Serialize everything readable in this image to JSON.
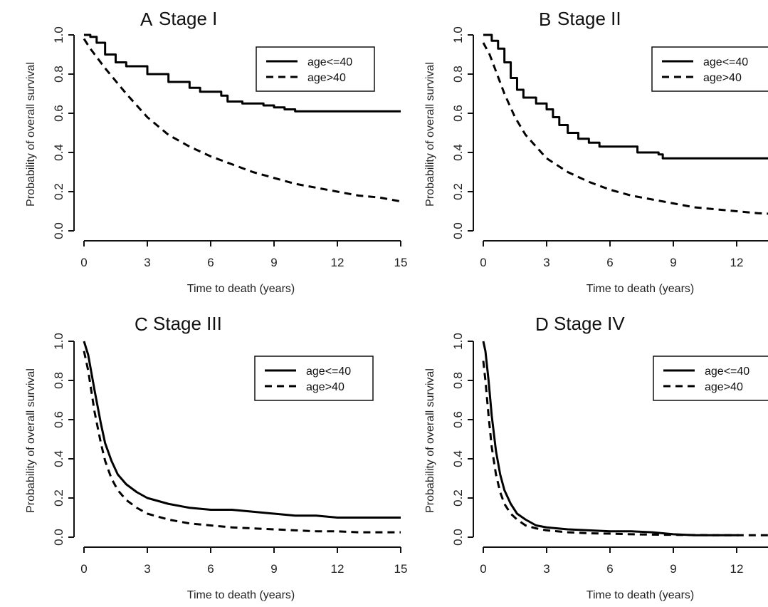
{
  "figure": {
    "legend_labels": [
      "age<=40",
      "age>40"
    ],
    "xlabel": "Time to death (years)",
    "ylabel": "Probability of overall survival"
  },
  "chart_data": [
    {
      "type": "line",
      "panel": "A",
      "title": "Stage I",
      "xlabel": "Time to death (years)",
      "ylabel": "Probability of overall survival",
      "xlim": [
        0,
        15
      ],
      "ylim": [
        0,
        1
      ],
      "xticks": [
        "0",
        "3",
        "6",
        "9",
        "12",
        "15"
      ],
      "yticks": [
        "0.0",
        "0.2",
        "0.4",
        "0.6",
        "0.8",
        "1.0"
      ],
      "legend": "top-right",
      "grid": false,
      "series": [
        {
          "name": "age<=40",
          "style": "solid",
          "step": true,
          "x": [
            0,
            0.3,
            0.6,
            1.0,
            1.5,
            2,
            3,
            4,
            5,
            5.5,
            6,
            6.5,
            6.8,
            7.5,
            8.5,
            9,
            9.5,
            10,
            12,
            15
          ],
          "y": [
            1.0,
            0.99,
            0.96,
            0.9,
            0.86,
            0.84,
            0.8,
            0.76,
            0.73,
            0.71,
            0.71,
            0.69,
            0.66,
            0.65,
            0.64,
            0.63,
            0.62,
            0.61,
            0.61,
            0.61
          ]
        },
        {
          "name": "age>40",
          "style": "dashed",
          "step": false,
          "x": [
            0,
            0.3,
            1,
            2,
            3,
            4,
            5,
            6,
            7,
            8,
            9,
            10,
            11,
            12,
            13,
            14,
            15
          ],
          "y": [
            0.98,
            0.93,
            0.83,
            0.7,
            0.58,
            0.49,
            0.43,
            0.38,
            0.34,
            0.3,
            0.27,
            0.24,
            0.22,
            0.2,
            0.18,
            0.17,
            0.15
          ]
        }
      ]
    },
    {
      "type": "line",
      "panel": "B",
      "title": "Stage II",
      "xlabel": "Time to death (years)",
      "ylabel": "Probability of overall survival",
      "xlim": [
        0,
        15
      ],
      "ylim": [
        0,
        1
      ],
      "xticks": [
        "0",
        "3",
        "6",
        "9",
        "12"
      ],
      "yticks": [
        "0.0",
        "0.2",
        "0.4",
        "0.6",
        "0.8",
        "1.0"
      ],
      "legend": "top-right",
      "grid": false,
      "series": [
        {
          "name": "age<=40",
          "style": "solid",
          "step": true,
          "x": [
            0,
            0.4,
            0.7,
            1.0,
            1.3,
            1.6,
            1.9,
            2.5,
            3.0,
            3.3,
            3.6,
            4.0,
            4.5,
            5.0,
            5.5,
            6.0,
            7.3,
            8.3,
            8.5,
            12,
            15
          ],
          "y": [
            1.0,
            0.97,
            0.93,
            0.86,
            0.78,
            0.72,
            0.68,
            0.65,
            0.62,
            0.58,
            0.54,
            0.5,
            0.47,
            0.45,
            0.43,
            0.43,
            0.4,
            0.39,
            0.37,
            0.37,
            0.37
          ]
        },
        {
          "name": "age>40",
          "style": "dashed",
          "step": false,
          "x": [
            0,
            0.3,
            1,
            1.5,
            2,
            3,
            4,
            5,
            6,
            7,
            8,
            9,
            10,
            11,
            12,
            13,
            14,
            15
          ],
          "y": [
            0.96,
            0.9,
            0.7,
            0.58,
            0.49,
            0.37,
            0.3,
            0.25,
            0.21,
            0.18,
            0.16,
            0.14,
            0.12,
            0.11,
            0.1,
            0.09,
            0.085,
            0.08
          ]
        }
      ]
    },
    {
      "type": "line",
      "panel": "C",
      "title": "Stage III",
      "xlabel": "Time to death (years)",
      "ylabel": "Probability of overall survival",
      "xlim": [
        0,
        15
      ],
      "ylim": [
        0,
        1
      ],
      "xticks": [
        "0",
        "3",
        "6",
        "9",
        "12",
        "15"
      ],
      "yticks": [
        "0.0",
        "0.2",
        "0.4",
        "0.6",
        "0.8",
        "1.0"
      ],
      "legend": "top-right",
      "grid": false,
      "series": [
        {
          "name": "age<=40",
          "style": "solid",
          "step": false,
          "x": [
            0,
            0.2,
            0.5,
            0.8,
            1.0,
            1.3,
            1.6,
            2,
            2.5,
            3,
            4,
            5,
            6,
            7,
            8,
            9,
            10,
            11,
            12,
            13,
            15
          ],
          "y": [
            1.0,
            0.93,
            0.75,
            0.58,
            0.48,
            0.39,
            0.32,
            0.27,
            0.23,
            0.2,
            0.17,
            0.15,
            0.14,
            0.14,
            0.13,
            0.12,
            0.11,
            0.11,
            0.1,
            0.1,
            0.1
          ]
        },
        {
          "name": "age>40",
          "style": "dashed",
          "step": false,
          "x": [
            0,
            0.2,
            0.5,
            0.8,
            1.0,
            1.3,
            1.6,
            2,
            2.5,
            3,
            4,
            5,
            6,
            7,
            8,
            9,
            10,
            11,
            12,
            13,
            15
          ],
          "y": [
            0.95,
            0.85,
            0.64,
            0.48,
            0.39,
            0.3,
            0.24,
            0.19,
            0.15,
            0.12,
            0.09,
            0.07,
            0.06,
            0.05,
            0.045,
            0.04,
            0.035,
            0.03,
            0.03,
            0.025,
            0.025
          ]
        }
      ]
    },
    {
      "type": "line",
      "panel": "D",
      "title": "Stage IV",
      "xlabel": "Time to death (years)",
      "ylabel": "Probability of overall survival",
      "xlim": [
        0,
        15
      ],
      "ylim": [
        0,
        1
      ],
      "xticks": [
        "0",
        "3",
        "6",
        "9",
        "12"
      ],
      "yticks": [
        "0.0",
        "0.2",
        "0.4",
        "0.6",
        "0.8",
        "1.0"
      ],
      "legend": "top-right",
      "grid": false,
      "series": [
        {
          "name": "age<=40",
          "style": "solid",
          "step": false,
          "x": [
            0,
            0.1,
            0.25,
            0.4,
            0.6,
            0.8,
            1.0,
            1.3,
            1.6,
            2,
            2.5,
            3,
            4,
            5,
            6,
            7,
            8,
            9,
            10,
            11,
            12.1
          ],
          "y": [
            1.0,
            0.95,
            0.8,
            0.62,
            0.44,
            0.32,
            0.24,
            0.17,
            0.12,
            0.09,
            0.06,
            0.05,
            0.04,
            0.035,
            0.03,
            0.03,
            0.025,
            0.015,
            0.01,
            0.01,
            0.01
          ]
        },
        {
          "name": "age>40",
          "style": "dashed",
          "step": false,
          "x": [
            0,
            0.1,
            0.25,
            0.4,
            0.6,
            0.8,
            1.0,
            1.3,
            1.6,
            2,
            2.5,
            3,
            4,
            5,
            6,
            7,
            8,
            9,
            10,
            11,
            12,
            13,
            15
          ],
          "y": [
            0.9,
            0.8,
            0.62,
            0.46,
            0.32,
            0.23,
            0.17,
            0.12,
            0.09,
            0.06,
            0.045,
            0.035,
            0.025,
            0.02,
            0.018,
            0.015,
            0.013,
            0.012,
            0.011,
            0.01,
            0.01,
            0.01,
            0.01
          ]
        }
      ]
    }
  ]
}
